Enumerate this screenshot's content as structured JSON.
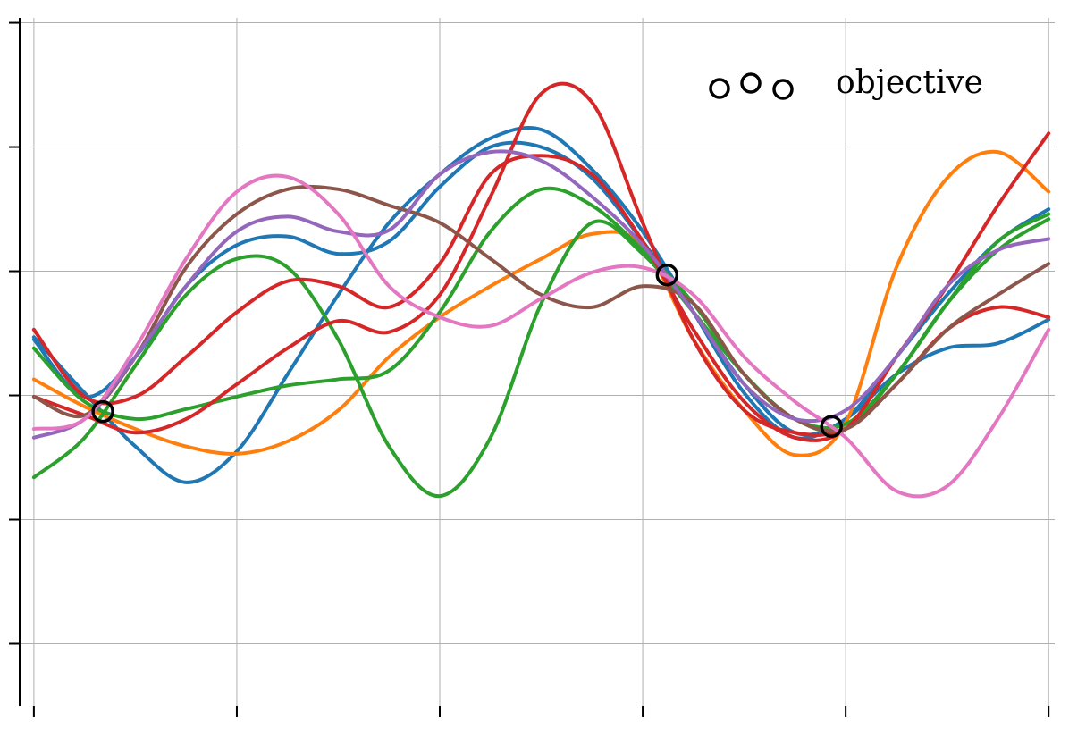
{
  "chart_data": {
    "type": "line",
    "grid": true,
    "xlim": [
      -0.07,
      5.03
    ],
    "xticks": [
      0,
      1,
      2,
      3,
      4,
      5
    ],
    "ylim": [
      -2.5,
      3.04
    ],
    "yticks": [
      -2,
      -1,
      0,
      1,
      2,
      3
    ],
    "legend": "upper right",
    "x": [
      0,
      0.25,
      0.5,
      0.75,
      1,
      1.25,
      1.5,
      1.75,
      2,
      2.25,
      2.5,
      2.75,
      3,
      3.25,
      3.5,
      3.75,
      4,
      4.25,
      4.5,
      4.75,
      5
    ],
    "series": [
      {
        "color": "#1f77b4",
        "values": [
          0.47,
          0.02,
          -0.41,
          -0.7,
          -0.45,
          0.17,
          0.81,
          1.39,
          1.78,
          2.07,
          2.14,
          1.82,
          1.32,
          0.67,
          0.02,
          -0.34,
          -0.19,
          0.17,
          0.38,
          0.42,
          0.61
        ]
      },
      {
        "color": "#1f77b4",
        "values": [
          0.45,
          -0.01,
          0.31,
          0.88,
          1.21,
          1.28,
          1.14,
          1.24,
          1.68,
          2.0,
          2.0,
          1.75,
          1.24,
          0.67,
          0.09,
          -0.3,
          -0.19,
          0.31,
          0.81,
          1.24,
          1.5
        ]
      },
      {
        "color": "#ff7f0e",
        "values": [
          0.13,
          -0.09,
          -0.27,
          -0.41,
          -0.47,
          -0.37,
          -0.12,
          0.31,
          0.63,
          0.88,
          1.1,
          1.3,
          1.21,
          0.45,
          -0.12,
          -0.48,
          -0.22,
          1.03,
          1.75,
          1.96,
          1.64
        ]
      },
      {
        "color": "#2ca02c",
        "values": [
          -0.66,
          -0.34,
          0.24,
          0.81,
          1.1,
          1.03,
          0.45,
          -0.41,
          -0.81,
          -0.34,
          0.74,
          1.39,
          1.14,
          0.67,
          0.17,
          -0.19,
          -0.27,
          0.17,
          0.74,
          1.17,
          1.42
        ]
      },
      {
        "color": "#2ca02c",
        "values": [
          0.38,
          -0.05,
          -0.19,
          -0.11,
          -0.01,
          0.08,
          0.13,
          0.2,
          0.67,
          1.32,
          1.66,
          1.53,
          1.17,
          0.74,
          0.17,
          -0.19,
          -0.23,
          0.17,
          0.74,
          1.24,
          1.46
        ]
      },
      {
        "color": "#d62728",
        "values": [
          -0.01,
          -0.16,
          -0.3,
          -0.19,
          0.09,
          0.38,
          0.6,
          0.51,
          0.81,
          1.6,
          2.43,
          2.36,
          1.39,
          0.45,
          -0.12,
          -0.3,
          -0.27,
          0.09,
          0.53,
          0.71,
          0.63
        ]
      },
      {
        "color": "#d62728",
        "values": [
          0.53,
          -0.01,
          -0.01,
          0.31,
          0.67,
          0.92,
          0.88,
          0.71,
          1.06,
          1.78,
          1.93,
          1.78,
          1.24,
          0.53,
          -0.05,
          -0.34,
          -0.27,
          0.31,
          0.88,
          1.53,
          2.11
        ]
      },
      {
        "color": "#8c564b",
        "values": [
          -0.01,
          -0.16,
          0.31,
          1.03,
          1.46,
          1.66,
          1.66,
          1.53,
          1.39,
          1.1,
          0.81,
          0.71,
          0.88,
          0.74,
          0.17,
          -0.19,
          -0.27,
          0.09,
          0.53,
          0.81,
          1.06
        ]
      },
      {
        "color": "#9467bd",
        "values": [
          -0.34,
          -0.19,
          0.31,
          0.88,
          1.32,
          1.44,
          1.32,
          1.33,
          1.78,
          1.96,
          1.89,
          1.6,
          1.21,
          0.67,
          0.09,
          -0.19,
          -0.12,
          0.31,
          0.88,
          1.17,
          1.26
        ]
      },
      {
        "color": "#e377c2",
        "values": [
          -0.27,
          -0.19,
          0.38,
          1.1,
          1.64,
          1.76,
          1.46,
          0.88,
          0.63,
          0.56,
          0.78,
          0.99,
          1.03,
          0.81,
          0.31,
          -0.05,
          -0.34,
          -0.77,
          -0.73,
          -0.19,
          0.53
        ]
      }
    ],
    "observations": {
      "name": "objective",
      "color": "#000000",
      "x": [
        0.34,
        3.12,
        3.93
      ],
      "values": [
        -0.13,
        0.97,
        -0.25
      ]
    }
  }
}
